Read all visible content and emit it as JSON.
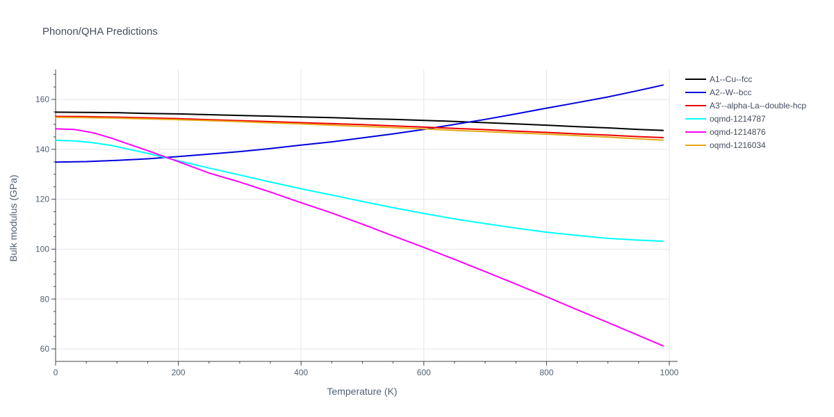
{
  "chart_data": {
    "type": "line",
    "title": "Phonon/QHA Predictions",
    "xlabel": "Temperature (K)",
    "ylabel": "Bulk modulus (GPa)",
    "xlim": [
      0,
      1000
    ],
    "ylim": [
      55,
      172
    ],
    "xticks": [
      0,
      200,
      400,
      600,
      800,
      1000
    ],
    "yticks": [
      60,
      80,
      100,
      120,
      140,
      160
    ],
    "grid": true,
    "legend_position": "top-right, outside plot area",
    "series": [
      {
        "name": "A1--Cu--fcc",
        "color": "#000000",
        "x": [
          0,
          50,
          100,
          150,
          200,
          250,
          300,
          350,
          400,
          450,
          500,
          550,
          600,
          650,
          700,
          750,
          800,
          850,
          900,
          950,
          990
        ],
        "y": [
          154.9,
          154.8,
          154.7,
          154.4,
          154.2,
          153.9,
          153.6,
          153.3,
          153.0,
          152.7,
          152.3,
          152.0,
          151.6,
          151.2,
          150.7,
          150.2,
          149.7,
          149.1,
          148.6,
          148.0,
          147.6
        ]
      },
      {
        "name": "A2--W--bcc",
        "color": "#0000dd",
        "x": [
          0,
          50,
          100,
          150,
          200,
          250,
          300,
          350,
          400,
          450,
          500,
          550,
          600,
          650,
          700,
          750,
          800,
          850,
          900,
          950,
          990
        ],
        "y": [
          134.9,
          135.1,
          135.6,
          136.2,
          137.1,
          138.1,
          139.1,
          140.3,
          141.7,
          143.0,
          144.6,
          146.2,
          148.0,
          150.0,
          152.0,
          154.2,
          156.5,
          158.7,
          161.0,
          163.6,
          165.8
        ]
      },
      {
        "name": "A3'--alpha-La--double-hcp",
        "color": "#ee0000",
        "x": [
          0,
          50,
          100,
          150,
          200,
          250,
          300,
          350,
          400,
          450,
          500,
          550,
          600,
          650,
          700,
          750,
          800,
          850,
          900,
          950,
          990
        ],
        "y": [
          153.2,
          153.1,
          152.9,
          152.6,
          152.3,
          151.9,
          151.5,
          151.1,
          150.7,
          150.3,
          149.9,
          149.4,
          148.9,
          148.4,
          147.9,
          147.3,
          146.8,
          146.2,
          145.7,
          145.1,
          144.7
        ]
      },
      {
        "name": "oqmd-1214787",
        "color": "#00ffff",
        "x": [
          0,
          30,
          60,
          90,
          120,
          150,
          200,
          250,
          300,
          350,
          400,
          450,
          500,
          550,
          600,
          650,
          700,
          750,
          800,
          850,
          900,
          950,
          990
        ],
        "y": [
          143.6,
          143.4,
          142.7,
          141.6,
          140.0,
          138.4,
          135.4,
          132.5,
          129.7,
          126.9,
          124.2,
          121.7,
          119.1,
          116.6,
          114.3,
          112.1,
          110.2,
          108.4,
          106.8,
          105.5,
          104.3,
          103.6,
          103.2
        ]
      },
      {
        "name": "oqmd-1214876",
        "color": "#ff00ff",
        "x": [
          0,
          30,
          60,
          90,
          120,
          150,
          200,
          250,
          300,
          350,
          400,
          450,
          500,
          550,
          600,
          650,
          700,
          750,
          800,
          850,
          900,
          950,
          990
        ],
        "y": [
          148.2,
          148.0,
          146.7,
          144.6,
          142.0,
          139.5,
          135.1,
          130.5,
          126.9,
          122.9,
          118.6,
          114.5,
          110.0,
          105.3,
          100.7,
          95.9,
          91.0,
          86.0,
          80.9,
          75.7,
          70.6,
          65.4,
          61.2
        ]
      },
      {
        "name": "oqmd-1216034",
        "color": "#e6a817",
        "x": [
          0,
          50,
          100,
          150,
          200,
          250,
          300,
          350,
          400,
          450,
          500,
          550,
          600,
          650,
          700,
          750,
          800,
          850,
          900,
          950,
          990
        ],
        "y": [
          152.8,
          152.7,
          152.5,
          152.2,
          151.9,
          151.5,
          151.1,
          150.6,
          150.2,
          149.7,
          149.2,
          148.7,
          148.2,
          147.6,
          147.1,
          146.6,
          146.1,
          145.5,
          144.9,
          144.2,
          143.7
        ]
      }
    ]
  }
}
